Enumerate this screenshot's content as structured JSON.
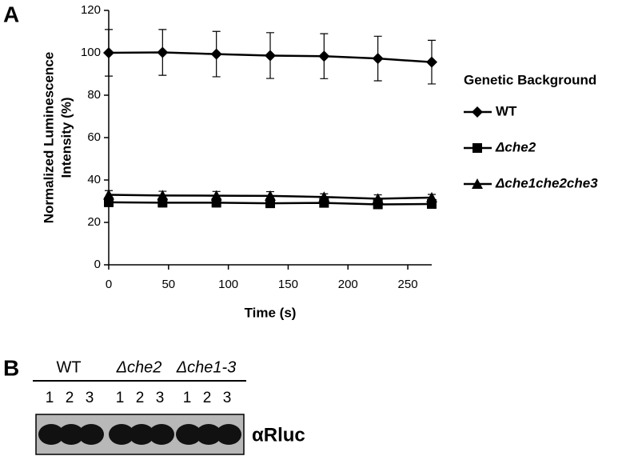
{
  "panel_labels": [
    "A",
    "B"
  ],
  "chart_data": {
    "type": "line",
    "xlabel": "Time (s)",
    "ylabel": [
      "Normalized Luminescence",
      "Intensity (%)"
    ],
    "x": [
      0,
      45,
      90,
      135,
      180,
      225,
      270
    ],
    "xlim": [
      0,
      270
    ],
    "xticks": [
      0,
      50,
      100,
      150,
      200,
      250
    ],
    "ylim": [
      0,
      120
    ],
    "yticks": [
      0,
      20,
      40,
      60,
      80,
      100,
      120
    ],
    "legend_title": "Genetic Background",
    "series": [
      {
        "name": "WT",
        "color": "#000000",
        "marker": "diamond",
        "values": [
          100,
          100.2,
          99.4,
          98.7,
          98.4,
          97.3,
          95.6
        ],
        "errors": [
          11,
          10.8,
          10.7,
          10.8,
          10.6,
          10.5,
          10.3
        ]
      },
      {
        "name": "Δche2",
        "color": "#000000",
        "marker": "square",
        "values": [
          29.5,
          29.3,
          29.3,
          29,
          29.2,
          28.5,
          28.7
        ],
        "errors": [
          2,
          2,
          2,
          2,
          2,
          2,
          2
        ]
      },
      {
        "name": "Δche1che2che3",
        "color": "#000000",
        "marker": "triangle",
        "values": [
          33,
          32.7,
          32.6,
          32.5,
          32,
          31.2,
          31.7
        ],
        "errors": [
          2,
          2,
          2,
          2,
          1.5,
          1.8,
          1.5
        ]
      }
    ]
  },
  "blot": {
    "groups": [
      {
        "label": "WT",
        "lanes": [
          "1",
          "2",
          "3"
        ]
      },
      {
        "label": "Δche2",
        "lanes": [
          "1",
          "2",
          "3"
        ]
      },
      {
        "label": "Δche1-3",
        "lanes": [
          "1",
          "2",
          "3"
        ]
      }
    ],
    "antibody": "αRluc"
  }
}
